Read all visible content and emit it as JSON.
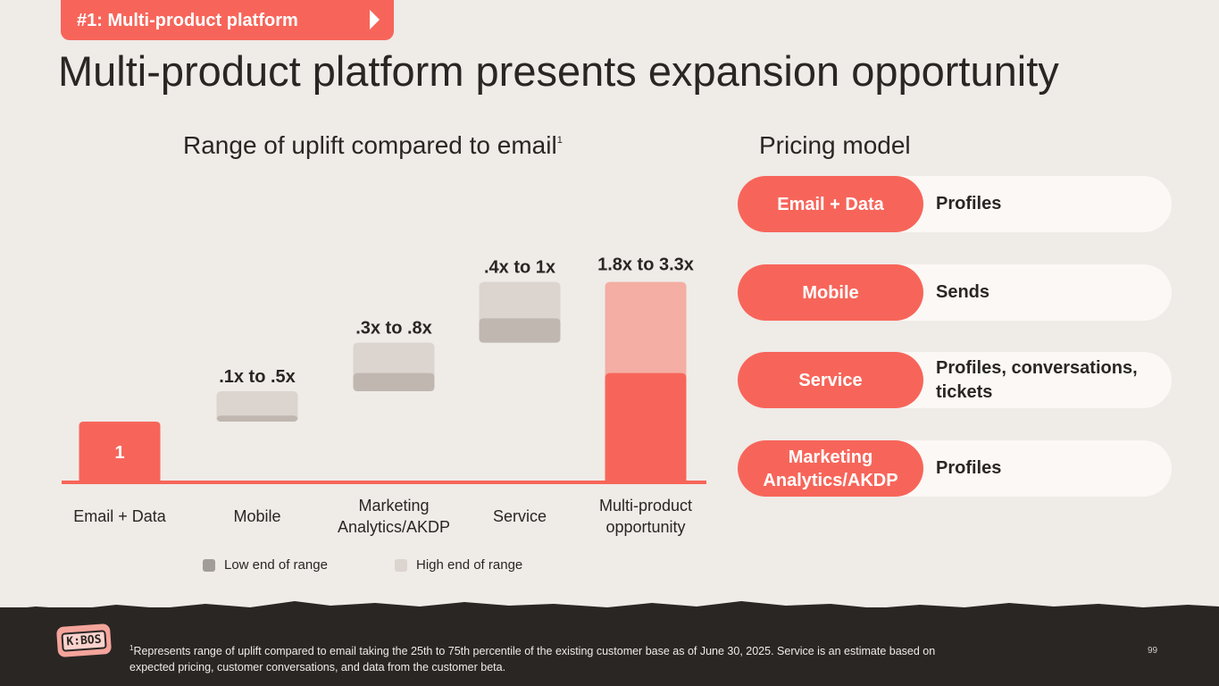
{
  "header": {
    "tag_label": "#1: Multi-product platform",
    "title": "Multi-product platform presents expansion opportunity"
  },
  "chart_data": {
    "type": "bar",
    "title": "Range of uplift compared to email",
    "title_footnote": "1",
    "categories": [
      "Email + Data",
      "Mobile",
      "Marketing Analytics/AKDP",
      "Service",
      "Multi-product opportunity"
    ],
    "baseline": {
      "category": "Email + Data",
      "value": 1,
      "label": "1"
    },
    "series": [
      {
        "name": "Low end of range",
        "values": [
          1,
          0.1,
          0.3,
          0.4,
          1.8
        ]
      },
      {
        "name": "High end of range",
        "values": [
          1,
          0.5,
          0.8,
          1.0,
          3.3
        ]
      }
    ],
    "range_labels": [
      "",
      ".1x to .5x",
      ".3x to .8x",
      ".4x to 1x",
      "1.8x to 3.3x"
    ],
    "colors": {
      "accent": "#f7655a",
      "accent_light": "#f4aea3",
      "low": "#c0b7b1",
      "high": "#dbd4cf",
      "axis": "#f7655a"
    },
    "legend": [
      "Low end of range",
      "High end of range"
    ],
    "legend_colors": [
      "#a29c98",
      "#dbd4cf"
    ]
  },
  "pricing": {
    "title": "Pricing model",
    "rows": [
      {
        "product": "Email + Data",
        "metric": "Profiles"
      },
      {
        "product": "Mobile",
        "metric": "Sends"
      },
      {
        "product": "Service",
        "metric": "Profiles, conversations, tickets"
      },
      {
        "product": "Marketing Analytics/AKDP",
        "metric": "Profiles"
      }
    ]
  },
  "footer": {
    "logo_text": "K:BOS",
    "footnote_marker": "1",
    "footnote": "Represents range of uplift compared to email taking the 25th to 75th percentile of the existing customer base as of June 30, 2025. Service is an estimate based on expected pricing, customer conversations, and data from the customer beta.",
    "page_number": "99"
  }
}
